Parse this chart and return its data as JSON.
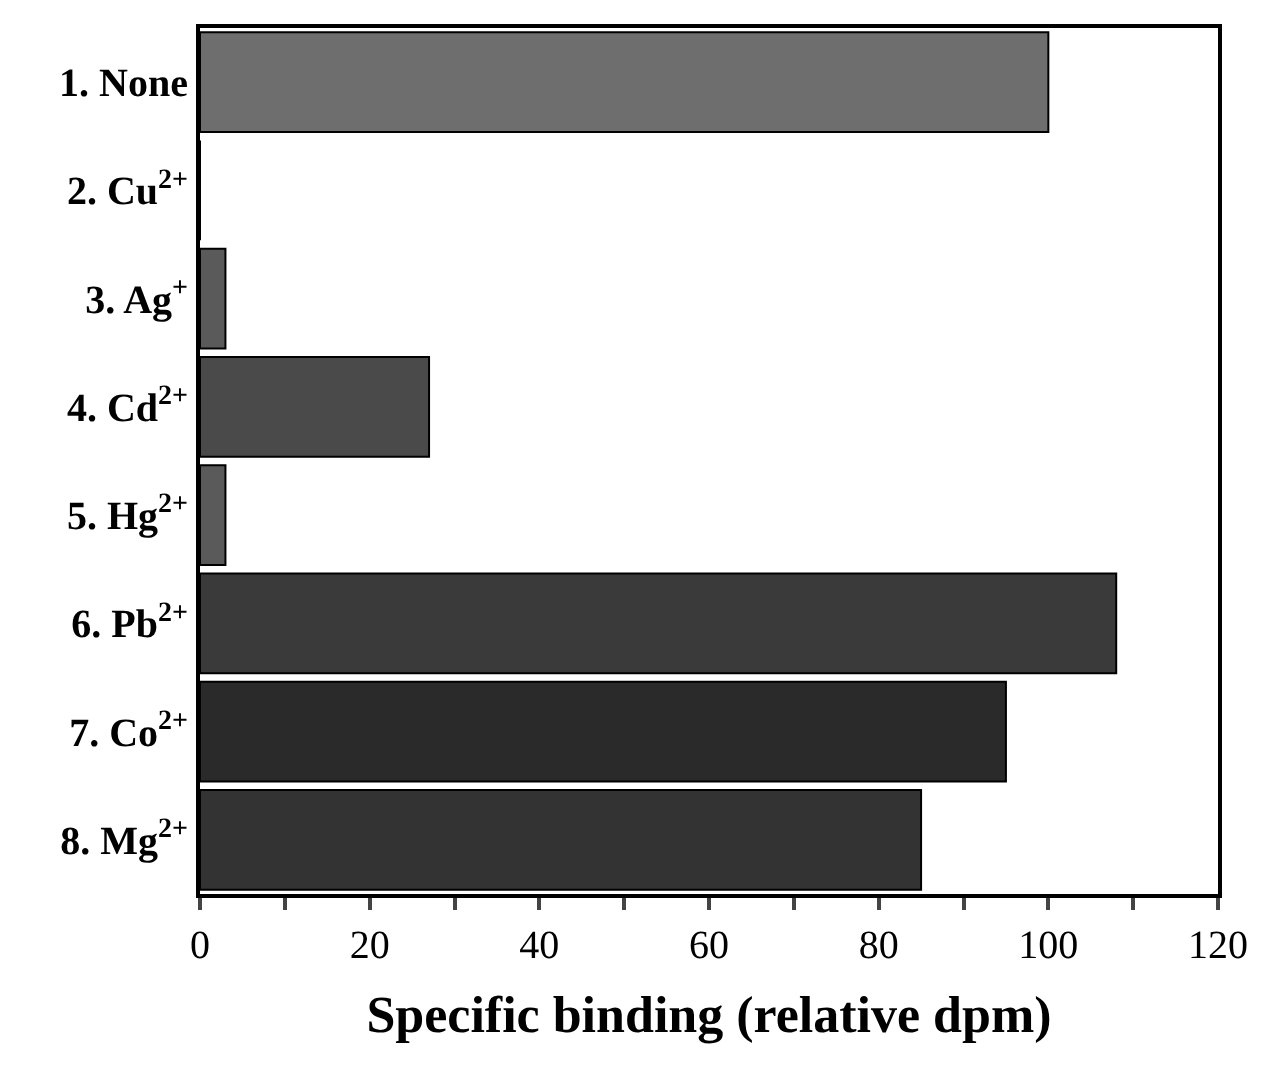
{
  "chart_data": {
    "type": "bar",
    "orientation": "horizontal",
    "xlabel": "Specific binding (relative dpm)",
    "categories": [
      "1. None",
      "2. Cu$^{2+}$",
      "3. Ag$^{+}$",
      "4. Cd$^{2+}$",
      "5. Hg$^{2+}$",
      "6. Pb$^{2+}$",
      "7. Co$^{2+}$",
      "8. Mg$^{2+}$"
    ],
    "values": [
      100,
      0,
      3,
      27,
      3,
      108,
      95,
      85
    ],
    "colors": [
      "#6e6e6e",
      "#000000",
      "#5a5a5a",
      "#4a4a4a",
      "#5a5a5a",
      "#3a3a3a",
      "#2a2a2a",
      "#333333"
    ],
    "xlim": [
      0,
      120
    ],
    "xticks": [
      0,
      {
        "value": 10,
        "label": null
      },
      20,
      {
        "value": 30,
        "label": null
      },
      40,
      {
        "value": 50,
        "label": null
      },
      60,
      {
        "value": 70,
        "label": null
      },
      80,
      {
        "value": 90,
        "label": null
      },
      100,
      {
        "value": 110,
        "label": null
      },
      120
    ],
    "legend": false
  }
}
